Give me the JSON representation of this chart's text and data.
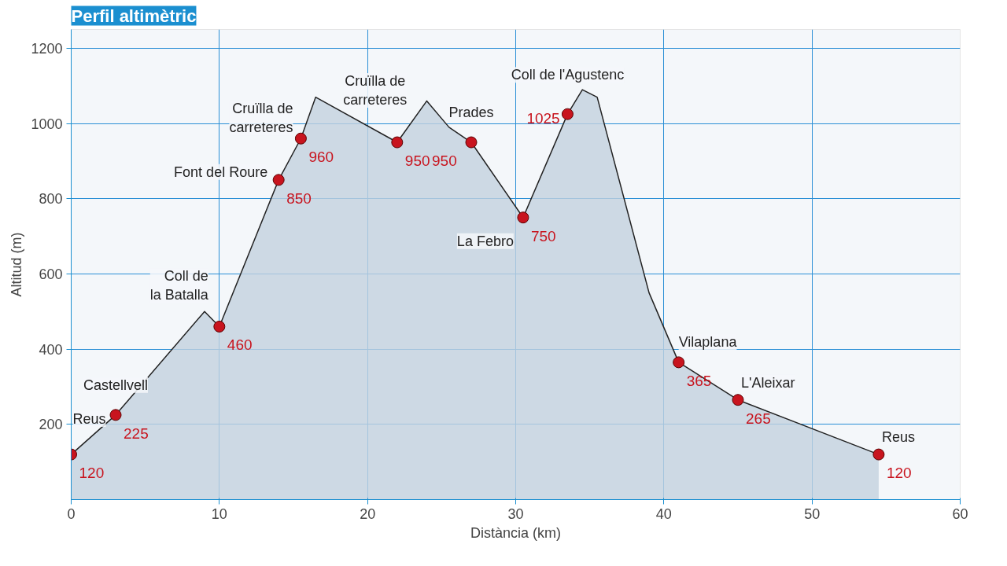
{
  "chart_data": {
    "type": "area",
    "title": "Perfil altimètric",
    "xlabel": "Distància (km)",
    "ylabel": "Altitud (m)",
    "xlim": [
      0,
      60
    ],
    "ylim": [
      0,
      1250
    ],
    "xticks": [
      0,
      10,
      20,
      30,
      40,
      50,
      60
    ],
    "yticks": [
      200,
      400,
      600,
      800,
      1000,
      1200
    ],
    "grid": true,
    "series": [
      {
        "color": "#c3d1de",
        "x": [
          0,
          3,
          9,
          10,
          14,
          15.5,
          16.5,
          22,
          24,
          25.5,
          27,
          30.5,
          33.5,
          34.5,
          35.5,
          39,
          41,
          45,
          54.5
        ],
        "values": [
          120,
          225,
          500,
          460,
          850,
          960,
          1070,
          950,
          1060,
          990,
          950,
          750,
          1025,
          1090,
          1070,
          550,
          365,
          265,
          120
        ]
      },
      {
        "type": "scatter",
        "color": "#c8141e",
        "marker": "circle",
        "x": [
          0,
          3,
          10,
          14,
          15.5,
          22,
          27,
          30.5,
          33.5,
          41,
          45,
          54.5
        ],
        "values": [
          120,
          225,
          460,
          850,
          960,
          950,
          950,
          750,
          1025,
          365,
          265,
          120
        ],
        "value_labels": [
          "120",
          "225",
          "460",
          "850",
          "960",
          "950",
          "950",
          "750",
          "1025",
          "365",
          "265",
          "120"
        ]
      }
    ],
    "annotations": [
      {
        "text": "Reus",
        "x": 0,
        "y": 120
      },
      {
        "text": "Castellvell",
        "x": 3,
        "y": 225
      },
      {
        "text": "Coll de la Batalla",
        "x": 10,
        "y": 460
      },
      {
        "text": "Font del Roure",
        "x": 14,
        "y": 850
      },
      {
        "text": "Cruïlla de carreteres",
        "x": 15.5,
        "y": 960
      },
      {
        "text": "Cruïlla de carreteres",
        "x": 22,
        "y": 950
      },
      {
        "text": "Prades",
        "x": 27,
        "y": 950
      },
      {
        "text": "La Febro",
        "x": 30.5,
        "y": 750
      },
      {
        "text": "Coll de l'Agustenc",
        "x": 33.5,
        "y": 1025
      },
      {
        "text": "Vilaplana",
        "x": 41,
        "y": 365
      },
      {
        "text": "L'Aleixar",
        "x": 45,
        "y": 265
      },
      {
        "text": "Reus",
        "x": 54.5,
        "y": 120
      }
    ]
  }
}
